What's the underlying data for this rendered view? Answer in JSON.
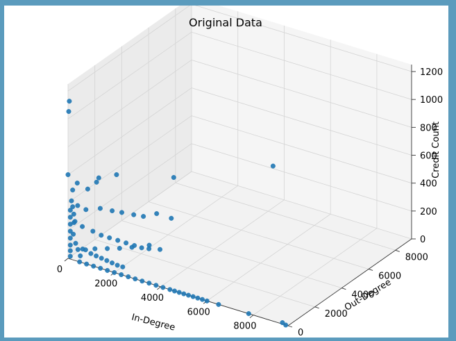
{
  "window": {
    "title": ""
  },
  "chart_data": {
    "type": "scatter",
    "projection": "3d",
    "title": "Original Data",
    "xlabel": "In-Degree",
    "ylabel": "Out-Degree",
    "zlabel": "Credit Count",
    "xlim": [
      0,
      9500
    ],
    "ylim": [
      0,
      9200
    ],
    "zlim": [
      0,
      1250
    ],
    "x_ticks": [
      "0",
      "2000",
      "4000",
      "6000",
      "8000"
    ],
    "y_ticks": [
      "0",
      "2000",
      "4000",
      "6000",
      "8000"
    ],
    "z_ticks": [
      "0",
      "200",
      "400",
      "600",
      "800",
      "1000",
      "1200"
    ],
    "grid": true,
    "marker_color": "#1f77b4",
    "series": [
      {
        "name": "",
        "points": [
          [
            0,
            100,
            1120
          ],
          [
            0,
            50,
            1050
          ],
          [
            0,
            0,
            600
          ],
          [
            400,
            0,
            560
          ],
          [
            200,
            0,
            500
          ],
          [
            850,
            0,
            540
          ],
          [
            1300,
            50,
            640
          ],
          [
            1000,
            400,
            570
          ],
          [
            1400,
            1200,
            590
          ],
          [
            3000,
            2700,
            550
          ],
          [
            5200,
            6300,
            500
          ],
          [
            300,
            200,
            380
          ],
          [
            600,
            300,
            360
          ],
          [
            1100,
            500,
            380
          ],
          [
            1500,
            700,
            370
          ],
          [
            1800,
            900,
            360
          ],
          [
            2200,
            1100,
            350
          ],
          [
            2500,
            1300,
            340
          ],
          [
            2900,
            1600,
            360
          ],
          [
            3300,
            2000,
            320
          ],
          [
            200,
            100,
            260
          ],
          [
            500,
            200,
            240
          ],
          [
            900,
            300,
            220
          ],
          [
            1200,
            400,
            200
          ],
          [
            1500,
            500,
            190
          ],
          [
            1800,
            600,
            180
          ],
          [
            2100,
            700,
            170
          ],
          [
            2400,
            800,
            160
          ],
          [
            2600,
            1000,
            140
          ],
          [
            2800,
            1200,
            130
          ],
          [
            3100,
            1500,
            120
          ],
          [
            100,
            0,
            350
          ],
          [
            100,
            0,
            300
          ],
          [
            100,
            0,
            250
          ],
          [
            100,
            0,
            200
          ],
          [
            100,
            0,
            150
          ],
          [
            100,
            0,
            100
          ],
          [
            100,
            0,
            60
          ],
          [
            100,
            0,
            20
          ],
          [
            150,
            0,
            420
          ],
          [
            200,
            0,
            380
          ],
          [
            250,
            0,
            330
          ],
          [
            300,
            0,
            280
          ],
          [
            200,
            50,
            180
          ],
          [
            300,
            50,
            120
          ],
          [
            400,
            50,
            80
          ],
          [
            500,
            50,
            40
          ],
          [
            700,
            100,
            90
          ],
          [
            900,
            150,
            70
          ],
          [
            1100,
            200,
            60
          ],
          [
            1300,
            250,
            50
          ],
          [
            1500,
            300,
            40
          ],
          [
            1700,
            350,
            30
          ],
          [
            1900,
            400,
            20
          ],
          [
            2100,
            450,
            15
          ],
          [
            400,
            400,
            60
          ],
          [
            700,
            800,
            50
          ],
          [
            1000,
            1200,
            40
          ],
          [
            1300,
            1600,
            30
          ],
          [
            1600,
            2000,
            25
          ],
          [
            2000,
            2600,
            20
          ],
          [
            500,
            0,
            0
          ],
          [
            800,
            0,
            0
          ],
          [
            1100,
            0,
            0
          ],
          [
            1400,
            0,
            0
          ],
          [
            1700,
            0,
            0
          ],
          [
            2000,
            0,
            0
          ],
          [
            2300,
            0,
            0
          ],
          [
            2600,
            0,
            0
          ],
          [
            2900,
            0,
            0
          ],
          [
            3200,
            0,
            0
          ],
          [
            3500,
            0,
            0
          ],
          [
            3800,
            0,
            0
          ],
          [
            4100,
            0,
            0
          ],
          [
            4400,
            0,
            0
          ],
          [
            4600,
            0,
            0
          ],
          [
            4800,
            0,
            0
          ],
          [
            5000,
            0,
            0
          ],
          [
            5200,
            0,
            0
          ],
          [
            5400,
            0,
            0
          ],
          [
            5600,
            0,
            0
          ],
          [
            5800,
            0,
            0
          ],
          [
            6000,
            0,
            0
          ],
          [
            6500,
            0,
            0
          ],
          [
            7800,
            0,
            0
          ],
          [
            9200,
            100,
            0
          ],
          [
            9400,
            0,
            0
          ]
        ]
      }
    ]
  }
}
